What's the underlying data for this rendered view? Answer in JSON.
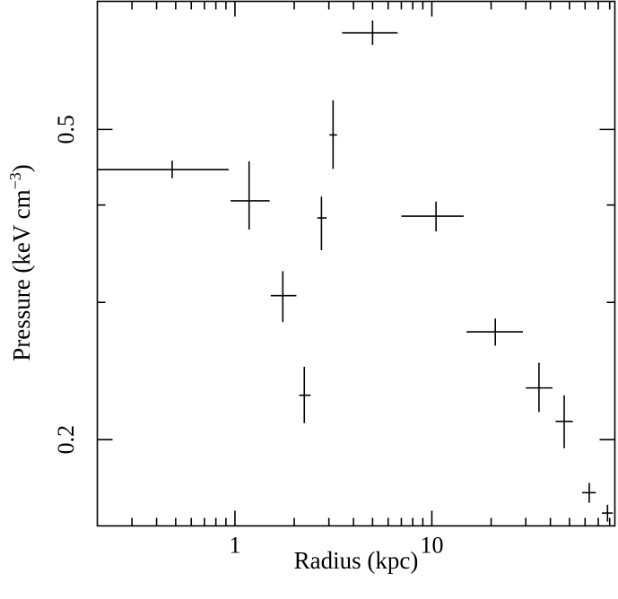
{
  "chart_data": {
    "type": "scatter",
    "title": "",
    "xlabel": "Radius (kpc)",
    "ylabel_main": "Pressure (keV cm",
    "ylabel_exp": "−3",
    "ylabel_close": ")",
    "x_scale": "log",
    "y_scale": "log",
    "xlim": [
      0.2,
      85
    ],
    "ylim": [
      0.155,
      0.73
    ],
    "x_ticks_major": [
      {
        "value": 1,
        "label": "1"
      },
      {
        "value": 10,
        "label": "10"
      }
    ],
    "x_ticks_minor": [
      0.3,
      0.4,
      0.5,
      0.6,
      0.7,
      0.8,
      0.9,
      2,
      3,
      4,
      5,
      6,
      7,
      8,
      9,
      20,
      30,
      40,
      50,
      60,
      70,
      80
    ],
    "y_ticks_labeled": [
      {
        "value": 0.5,
        "label": "0.5"
      },
      {
        "value": 0.2,
        "label": "0.2"
      }
    ],
    "y_ticks_unlabeled": [
      0.3,
      0.4
    ],
    "grid": false,
    "legend": "none",
    "series": [
      {
        "points": [
          {
            "x": 0.48,
            "xlo": 0.2,
            "xhi": 0.93,
            "y": 0.444,
            "ylo": 0.433,
            "yhi": 0.456
          },
          {
            "x": 1.18,
            "xlo": 0.95,
            "xhi": 1.5,
            "y": 0.405,
            "ylo": 0.372,
            "yhi": 0.455
          },
          {
            "x": 1.75,
            "xlo": 1.52,
            "xhi": 2.05,
            "y": 0.306,
            "ylo": 0.283,
            "yhi": 0.329
          },
          {
            "x": 2.25,
            "xlo": 2.12,
            "xhi": 2.42,
            "y": 0.228,
            "ylo": 0.21,
            "yhi": 0.248
          },
          {
            "x": 2.75,
            "xlo": 2.62,
            "xhi": 2.92,
            "y": 0.385,
            "ylo": 0.35,
            "yhi": 0.41
          },
          {
            "x": 3.15,
            "xlo": 3.02,
            "xhi": 3.3,
            "y": 0.492,
            "ylo": 0.445,
            "yhi": 0.545
          },
          {
            "x": 5.0,
            "xlo": 3.5,
            "xhi": 6.7,
            "y": 0.665,
            "ylo": 0.642,
            "yhi": 0.69
          },
          {
            "x": 10.5,
            "xlo": 7.0,
            "xhi": 14.5,
            "y": 0.387,
            "ylo": 0.37,
            "yhi": 0.404
          },
          {
            "x": 21.0,
            "xlo": 15.0,
            "xhi": 29.0,
            "y": 0.275,
            "ylo": 0.264,
            "yhi": 0.286
          },
          {
            "x": 35.0,
            "xlo": 30.0,
            "xhi": 41.0,
            "y": 0.233,
            "ylo": 0.217,
            "yhi": 0.251
          },
          {
            "x": 47.0,
            "xlo": 42.5,
            "xhi": 52.0,
            "y": 0.211,
            "ylo": 0.195,
            "yhi": 0.228
          },
          {
            "x": 63.0,
            "xlo": 58.0,
            "xhi": 68.0,
            "y": 0.171,
            "ylo": 0.166,
            "yhi": 0.176
          },
          {
            "x": 78.0,
            "xlo": 73.0,
            "xhi": 83.0,
            "y": 0.161,
            "ylo": 0.157,
            "yhi": 0.165
          }
        ]
      }
    ]
  }
}
